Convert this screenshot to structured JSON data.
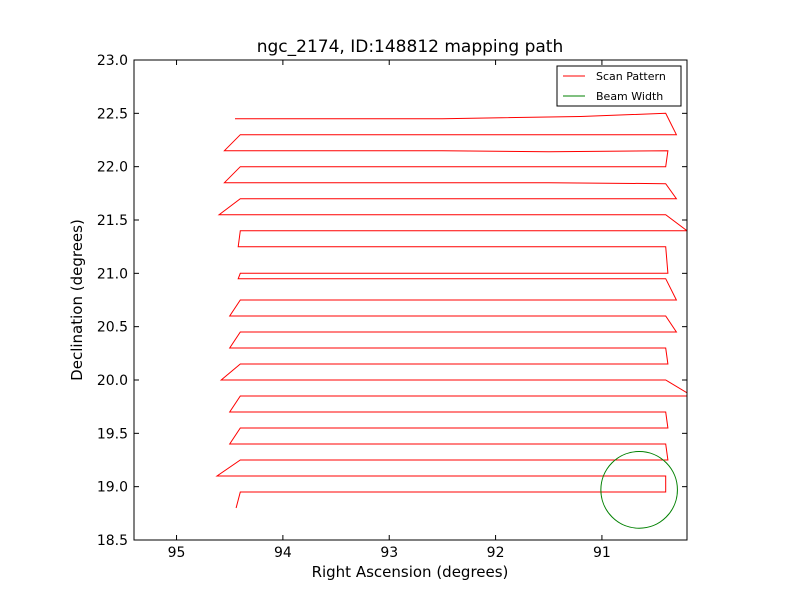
{
  "chart_data": {
    "type": "line",
    "title": "ngc_2174, ID:148812 mapping path",
    "xlabel": "Right Ascension (degrees)",
    "ylabel": "Declination (degrees)",
    "xlim": [
      95.4,
      90.2
    ],
    "ylim": [
      18.5,
      23.0
    ],
    "x_ticks": [
      95,
      94,
      93,
      92,
      91
    ],
    "x_tick_labels": [
      "95",
      "94",
      "93",
      "92",
      "91"
    ],
    "y_ticks": [
      18.5,
      19.0,
      19.5,
      20.0,
      20.5,
      21.0,
      21.5,
      22.0,
      22.5,
      23.0
    ],
    "y_tick_labels": [
      "18.5",
      "19.0",
      "19.5",
      "20.0",
      "20.5",
      "21.0",
      "21.5",
      "22.0",
      "22.5",
      "23.0"
    ],
    "grid": false,
    "legend_position": "top-right",
    "series": [
      {
        "name": "Scan Pattern",
        "kind": "line",
        "color": "#ff0000",
        "x": [
          94.45,
          93.5,
          92.5,
          91.2,
          90.4,
          90.3,
          91.5,
          92.5,
          93.5,
          94.4,
          94.55,
          94.4,
          93.5,
          92.5,
          91.5,
          90.38,
          90.4,
          91.5,
          92.5,
          93.5,
          94.4,
          94.55,
          94.4,
          93.5,
          92.5,
          91.5,
          90.4,
          90.3,
          91.5,
          92.5,
          93.5,
          94.4,
          94.6,
          94.4,
          93.5,
          92.5,
          91.5,
          90.4,
          90.2,
          91.5,
          92.5,
          93.5,
          94.4,
          94.42,
          94.4,
          93.5,
          92.5,
          91.5,
          90.4,
          90.38,
          91.5,
          92.5,
          93.5,
          94.4,
          94.42,
          94.4,
          93.5,
          92.5,
          91.5,
          90.4,
          90.3,
          91.5,
          92.5,
          93.5,
          94.4,
          94.5,
          94.4,
          93.5,
          92.5,
          91.5,
          90.4,
          90.3,
          91.5,
          92.5,
          93.5,
          94.4,
          94.5,
          94.4,
          93.5,
          92.5,
          91.5,
          90.4,
          90.38,
          91.5,
          92.5,
          93.5,
          94.4,
          94.58,
          94.4,
          93.5,
          92.5,
          91.5,
          90.4,
          90.15,
          91.5,
          92.5,
          93.5,
          94.4,
          94.5,
          94.4,
          93.5,
          92.5,
          91.5,
          90.4,
          90.38,
          91.5,
          92.5,
          93.5,
          94.4,
          94.5,
          94.4,
          93.5,
          92.5,
          91.5,
          90.4,
          90.38,
          91.5,
          92.5,
          93.5,
          94.4,
          94.62,
          94.4,
          93.5,
          92.5,
          91.5,
          90.4,
          90.4,
          91.5,
          92.5,
          93.5,
          94.4,
          94.44
        ],
        "y": [
          22.45,
          22.45,
          22.45,
          22.47,
          22.5,
          22.3,
          22.3,
          22.3,
          22.3,
          22.3,
          22.15,
          22.15,
          22.15,
          22.15,
          22.14,
          22.15,
          22.0,
          22.0,
          22.0,
          22.0,
          22.0,
          21.85,
          21.85,
          21.85,
          21.85,
          21.85,
          21.84,
          21.7,
          21.7,
          21.7,
          21.7,
          21.7,
          21.55,
          21.55,
          21.55,
          21.55,
          21.55,
          21.55,
          21.4,
          21.4,
          21.4,
          21.4,
          21.4,
          21.25,
          21.25,
          21.25,
          21.25,
          21.25,
          21.25,
          21.0,
          21.0,
          21.0,
          21.0,
          21.0,
          20.95,
          20.95,
          20.95,
          20.95,
          20.95,
          20.95,
          20.75,
          20.75,
          20.75,
          20.75,
          20.75,
          20.6,
          20.6,
          20.6,
          20.6,
          20.6,
          20.6,
          20.45,
          20.45,
          20.45,
          20.45,
          20.45,
          20.3,
          20.3,
          20.3,
          20.3,
          20.3,
          20.3,
          20.15,
          20.15,
          20.15,
          20.15,
          20.15,
          20.0,
          20.0,
          20.0,
          20.0,
          20.0,
          20.0,
          19.85,
          19.85,
          19.85,
          19.85,
          19.85,
          19.7,
          19.7,
          19.7,
          19.7,
          19.7,
          19.7,
          19.55,
          19.55,
          19.55,
          19.55,
          19.55,
          19.4,
          19.4,
          19.4,
          19.4,
          19.4,
          19.4,
          19.25,
          19.25,
          19.25,
          19.25,
          19.25,
          19.1,
          19.1,
          19.1,
          19.1,
          19.1,
          19.1,
          18.95,
          18.95,
          18.95,
          18.95,
          18.95,
          18.8
        ]
      },
      {
        "name": "Beam Width",
        "kind": "circle",
        "color": "#008000",
        "center": [
          90.65,
          18.97
        ],
        "radius": 0.36
      }
    ]
  }
}
